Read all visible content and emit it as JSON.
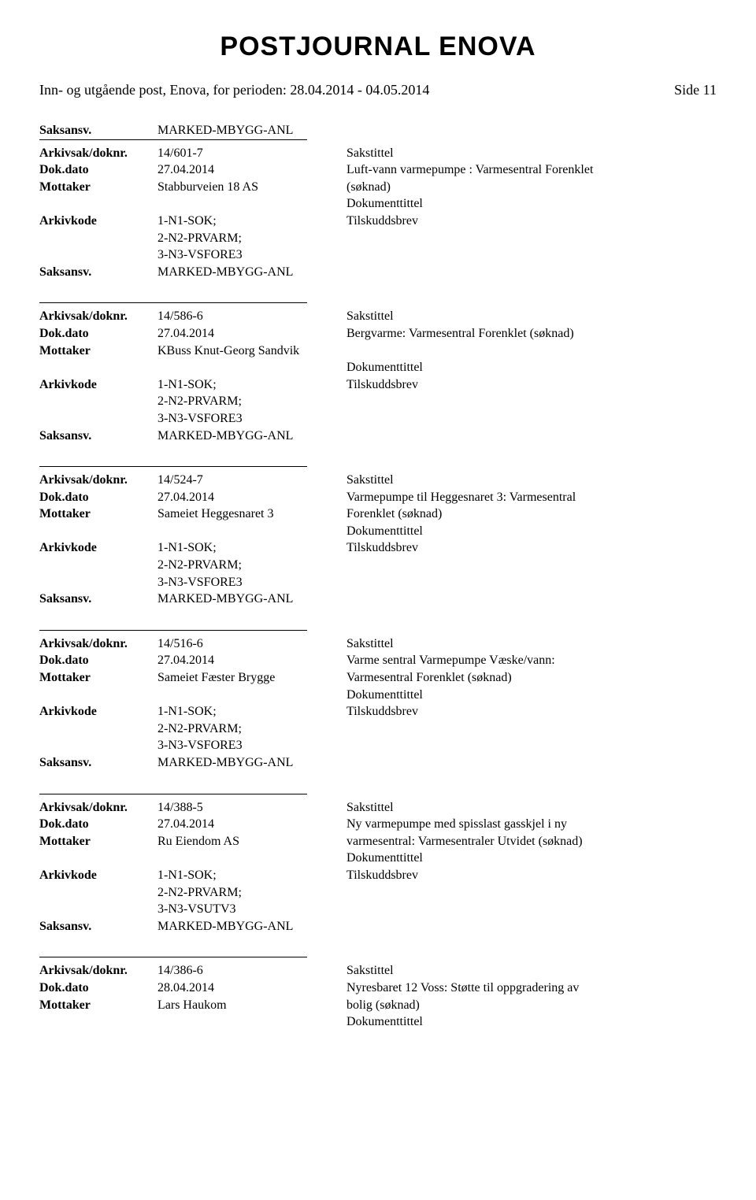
{
  "title": "POSTJOURNAL ENOVA",
  "header": {
    "left": "Inn- og utgående post, Enova, for perioden: 28.04.2014 - 04.05.2014",
    "right": "Side 11"
  },
  "labels": {
    "saksansv": "Saksansv.",
    "arkivsak": "Arkivsak/doknr.",
    "dokdato": "Dok.dato",
    "mottaker": "Mottaker",
    "arkivkode": "Arkivkode",
    "sakstittel": "Sakstittel",
    "dokumenttittel": "Dokumenttittel"
  },
  "top_saksansv": "MARKED-MBYGG-ANL",
  "records": [
    {
      "arkivsak": "14/601-7",
      "dokdato": "27.04.2014",
      "mottaker": "Stabburveien 18 AS",
      "sakstittel_line1": "",
      "sakstittel_line2": "Luft-vann varmepumpe : Varmesentral Forenklet",
      "sakstittel_line3": "(søknad)",
      "arkivkode_lines": [
        "1-N1-SOK;",
        "2-N2-PRVARM;",
        "3-N3-VSFORE3"
      ],
      "doktittel_sub": "Tilskuddsbrev",
      "saksansv": "MARKED-MBYGG-ANL"
    },
    {
      "arkivsak": "14/586-6",
      "dokdato": "27.04.2014",
      "mottaker": "KBuss Knut-Georg Sandvik",
      "sakstittel_line1": "",
      "sakstittel_line2": "Bergvarme: Varmesentral Forenklet (søknad)",
      "sakstittel_line3": "",
      "arkivkode_lines": [
        "1-N1-SOK;",
        "2-N2-PRVARM;",
        "3-N3-VSFORE3"
      ],
      "doktittel_sub": "Tilskuddsbrev",
      "saksansv": "MARKED-MBYGG-ANL"
    },
    {
      "arkivsak": "14/524-7",
      "dokdato": "27.04.2014",
      "mottaker": "Sameiet Heggesnaret 3",
      "sakstittel_line1": "",
      "sakstittel_line2": "Varmepumpe til Heggesnaret 3: Varmesentral",
      "sakstittel_line3": "Forenklet (søknad)",
      "arkivkode_lines": [
        "1-N1-SOK;",
        "2-N2-PRVARM;",
        "3-N3-VSFORE3"
      ],
      "doktittel_sub": "Tilskuddsbrev",
      "saksansv": "MARKED-MBYGG-ANL"
    },
    {
      "arkivsak": "14/516-6",
      "dokdato": "27.04.2014",
      "mottaker": "Sameiet Fæster Brygge",
      "sakstittel_line1": "",
      "sakstittel_line2": "Varme sentral Varmepumpe Væske/vann:",
      "sakstittel_line3": "Varmesentral Forenklet (søknad)",
      "arkivkode_lines": [
        "1-N1-SOK;",
        "2-N2-PRVARM;",
        "3-N3-VSFORE3"
      ],
      "doktittel_sub": "Tilskuddsbrev",
      "saksansv": "MARKED-MBYGG-ANL"
    },
    {
      "arkivsak": "14/388-5",
      "dokdato": "27.04.2014",
      "mottaker": "Ru Eiendom AS",
      "sakstittel_line1": "",
      "sakstittel_line2": "Ny varmepumpe med spisslast gasskjel i ny",
      "sakstittel_line3": "varmesentral: Varmesentraler Utvidet (søknad)",
      "arkivkode_lines": [
        "1-N1-SOK;",
        "2-N2-PRVARM;",
        "3-N3-VSUTV3"
      ],
      "doktittel_sub": "Tilskuddsbrev",
      "saksansv": "MARKED-MBYGG-ANL"
    },
    {
      "arkivsak": "14/386-6",
      "dokdato": "28.04.2014",
      "mottaker": "Lars Haukom",
      "sakstittel_line1": "",
      "sakstittel_line2": "Nyresbaret 12 Voss: Støtte til oppgradering av",
      "sakstittel_line3": "bolig (søknad)",
      "arkivkode_lines": [],
      "doktittel_sub": "",
      "saksansv": ""
    }
  ]
}
